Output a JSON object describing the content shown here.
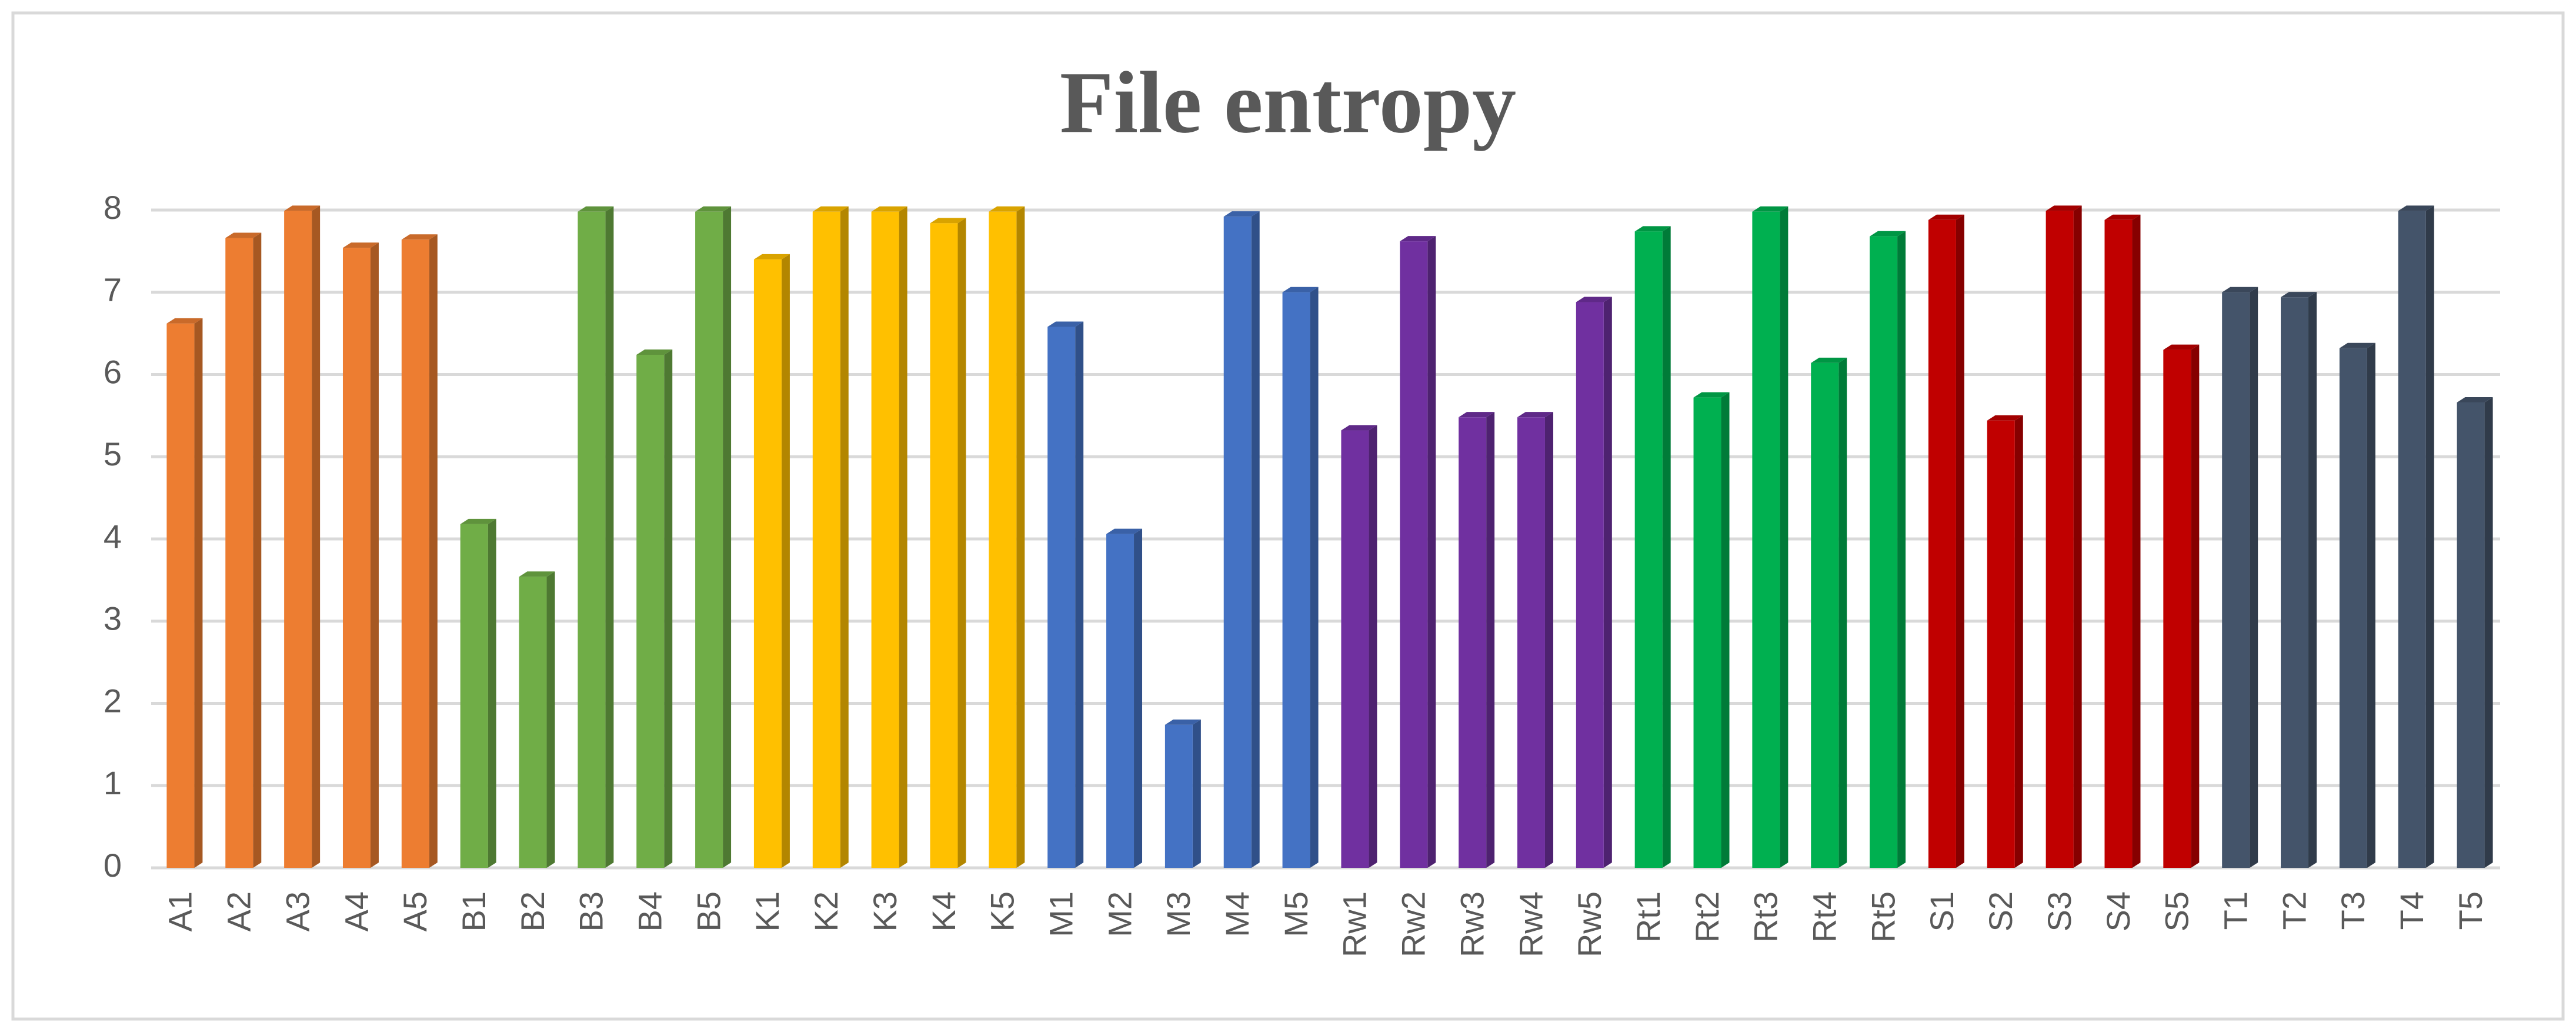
{
  "chart_data": {
    "type": "bar",
    "title": "File entropy",
    "categories": [
      "A1",
      "A2",
      "A3",
      "A4",
      "A5",
      "B1",
      "B2",
      "B3",
      "B4",
      "B5",
      "K1",
      "K2",
      "K3",
      "K4",
      "K5",
      "M1",
      "M2",
      "M3",
      "M4",
      "M5",
      "Rw1",
      "Rw2",
      "Rw3",
      "Rw4",
      "Rw5",
      "Rt1",
      "Rt2",
      "Rt3",
      "Rt4",
      "Rt5",
      "S1",
      "S2",
      "S3",
      "S4",
      "S5",
      "T1",
      "T2",
      "T3",
      "T4",
      "T5"
    ],
    "values": [
      6.62,
      7.66,
      7.99,
      7.54,
      7.64,
      4.18,
      3.54,
      7.98,
      6.24,
      7.98,
      7.4,
      7.98,
      7.98,
      7.84,
      7.98,
      6.58,
      4.06,
      1.74,
      7.92,
      7.0,
      5.32,
      7.62,
      5.48,
      5.48,
      6.88,
      7.74,
      5.72,
      7.98,
      6.14,
      7.68,
      7.88,
      5.44,
      7.99,
      7.88,
      6.3,
      7.0,
      6.94,
      6.32,
      7.99,
      5.66
    ],
    "colors": [
      "#ed7d31",
      "#ed7d31",
      "#ed7d31",
      "#ed7d31",
      "#ed7d31",
      "#70ad47",
      "#70ad47",
      "#70ad47",
      "#70ad47",
      "#70ad47",
      "#ffc000",
      "#ffc000",
      "#ffc000",
      "#ffc000",
      "#ffc000",
      "#4472c4",
      "#4472c4",
      "#4472c4",
      "#4472c4",
      "#4472c4",
      "#7030a0",
      "#7030a0",
      "#7030a0",
      "#7030a0",
      "#7030a0",
      "#00b050",
      "#00b050",
      "#00b050",
      "#00b050",
      "#00b050",
      "#c00000",
      "#c00000",
      "#c00000",
      "#c00000",
      "#c00000",
      "#44546a",
      "#44546a",
      "#44546a",
      "#44546a",
      "#44546a"
    ],
    "ylim": [
      0,
      8
    ],
    "yticks": [
      0,
      1,
      2,
      3,
      4,
      5,
      6,
      7,
      8
    ],
    "grid": true
  }
}
